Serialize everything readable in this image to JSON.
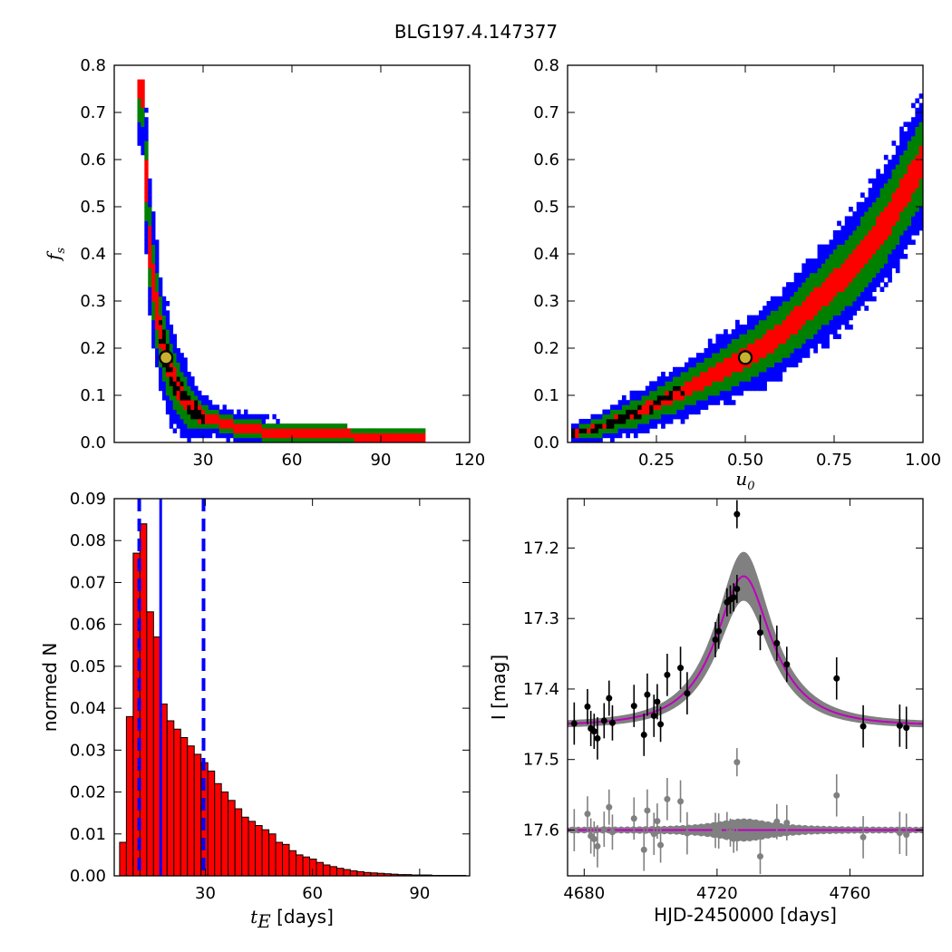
{
  "title": "BLG197.4.147377",
  "colors": {
    "outer": "#0000ff",
    "mid": "#008000",
    "inner": "#ff0000",
    "core": "#000000",
    "marker_fill": "#c8b030",
    "hist_fill": "#ff0000",
    "vline": "#0000ff",
    "band": "#808080",
    "model": "#bf00bf",
    "residual": "#808080"
  },
  "chart_data": [
    {
      "id": "fs_vs_tE",
      "type": "heatmap",
      "xlabel": "",
      "ylabel": "f_s",
      "ylabel_parts": [
        "f",
        "s"
      ],
      "xlim": [
        0,
        120
      ],
      "ylim": [
        0.0,
        0.8
      ],
      "xticks": [
        30,
        60,
        90,
        120
      ],
      "xtick_labels": [
        "30",
        "60",
        "90",
        "120"
      ],
      "yticks": [
        0.0,
        0.1,
        0.2,
        0.3,
        0.4,
        0.5,
        0.6,
        0.7,
        0.8
      ],
      "ytick_labels": [
        "0.0",
        "0.1",
        "0.2",
        "0.3",
        "0.4",
        "0.5",
        "0.6",
        "0.7",
        "0.8"
      ],
      "best_fit": {
        "x": 17.5,
        "y": 0.18
      },
      "ridge": [
        [
          9.5,
          0.77
        ],
        [
          10.5,
          0.6
        ],
        [
          11.5,
          0.45
        ],
        [
          13,
          0.35
        ],
        [
          15,
          0.25
        ],
        [
          17.5,
          0.18
        ],
        [
          21,
          0.12
        ],
        [
          25,
          0.08
        ],
        [
          30,
          0.055
        ],
        [
          40,
          0.035
        ],
        [
          50,
          0.025
        ],
        [
          60,
          0.02
        ],
        [
          80,
          0.015
        ],
        [
          100,
          0.013
        ]
      ]
    },
    {
      "id": "fs_vs_u0",
      "type": "heatmap",
      "xlabel": "u_0",
      "xlabel_parts": [
        "u",
        "0"
      ],
      "ylabel": "",
      "xlim": [
        0.0,
        1.0
      ],
      "ylim": [
        0.0,
        0.8
      ],
      "xticks": [
        0.25,
        0.5,
        0.75,
        1.0
      ],
      "xtick_labels": [
        "0.25",
        "0.50",
        "0.75",
        "1.00"
      ],
      "yticks": [
        0.0,
        0.1,
        0.2,
        0.3,
        0.4,
        0.5,
        0.6,
        0.7,
        0.8
      ],
      "ytick_labels": [
        "0.0",
        "0.1",
        "0.2",
        "0.3",
        "0.4",
        "0.5",
        "0.6",
        "0.7",
        "0.8"
      ],
      "best_fit": {
        "x": 0.5,
        "y": 0.18
      },
      "ridge": [
        [
          0.03,
          0.02
        ],
        [
          0.1,
          0.035
        ],
        [
          0.2,
          0.065
        ],
        [
          0.3,
          0.1
        ],
        [
          0.4,
          0.14
        ],
        [
          0.5,
          0.18
        ],
        [
          0.6,
          0.23
        ],
        [
          0.7,
          0.3
        ],
        [
          0.8,
          0.37
        ],
        [
          0.9,
          0.47
        ],
        [
          1.0,
          0.6
        ]
      ]
    },
    {
      "id": "tE_histogram",
      "type": "bar",
      "xlabel_parts": [
        "t",
        "E",
        " [days]"
      ],
      "xlabel": "t_E [days]",
      "ylabel": "normed N",
      "xlim": [
        4.5,
        104
      ],
      "ylim": [
        0.0,
        0.09
      ],
      "xticks": [
        30,
        60,
        90
      ],
      "xtick_labels": [
        "30",
        "60",
        "90"
      ],
      "yticks": [
        0.0,
        0.01,
        0.02,
        0.03,
        0.04,
        0.05,
        0.06,
        0.07,
        0.08,
        0.09
      ],
      "ytick_labels": [
        "0.00",
        "0.01",
        "0.02",
        "0.03",
        "0.04",
        "0.05",
        "0.06",
        "0.07",
        "0.08",
        "0.09"
      ],
      "bin_start": 6,
      "bin_width": 1.9,
      "values": [
        0.008,
        0.038,
        0.077,
        0.084,
        0.063,
        0.057,
        0.041,
        0.037,
        0.035,
        0.033,
        0.031,
        0.029,
        0.027,
        0.025,
        0.022,
        0.02,
        0.018,
        0.016,
        0.014,
        0.013,
        0.012,
        0.011,
        0.01,
        0.008,
        0.0075,
        0.006,
        0.005,
        0.0045,
        0.004,
        0.0032,
        0.0026,
        0.0022,
        0.0018,
        0.0015,
        0.0012,
        0.001,
        0.0008,
        0.0007,
        0.0006,
        0.0005,
        0.0004,
        0.0003,
        0.0003,
        0.0002,
        0.0002,
        0.0002,
        0.0001,
        0.0001,
        0.0001,
        0.0001,
        0.0001,
        0.0001
      ],
      "median": 17.5,
      "dashed_lines": [
        11.5,
        29.5
      ]
    },
    {
      "id": "light_curve",
      "type": "scatter",
      "xlabel": "HJD-2450000 [days]",
      "ylabel": "I [mag]",
      "xlim": [
        4675,
        4782
      ],
      "ylim": [
        17.665,
        17.13
      ],
      "xticks": [
        4680,
        4720,
        4760
      ],
      "xtick_labels": [
        "4680",
        "4720",
        "4760"
      ],
      "yticks": [
        17.2,
        17.3,
        17.4,
        17.5,
        17.6
      ],
      "ytick_labels": [
        "17.2",
        "17.3",
        "17.4",
        "17.5",
        "17.6"
      ],
      "model": {
        "t0": 4728,
        "baseline": 17.452,
        "peak": 17.24,
        "tE": 17.5,
        "u0": 0.5
      },
      "residual_offset": 17.6,
      "points": [
        {
          "t": 4677,
          "mag": 17.449,
          "err": 0.03
        },
        {
          "t": 4681,
          "mag": 17.425,
          "err": 0.025
        },
        {
          "t": 4682,
          "mag": 17.456,
          "err": 0.025
        },
        {
          "t": 4683,
          "mag": 17.46,
          "err": 0.025
        },
        {
          "t": 4684,
          "mag": 17.47,
          "err": 0.03
        },
        {
          "t": 4686,
          "mag": 17.445,
          "err": 0.025
        },
        {
          "t": 4687.5,
          "mag": 17.413,
          "err": 0.025
        },
        {
          "t": 4688.5,
          "mag": 17.448,
          "err": 0.025
        },
        {
          "t": 4695,
          "mag": 17.424,
          "err": 0.03
        },
        {
          "t": 4698,
          "mag": 17.465,
          "err": 0.03
        },
        {
          "t": 4699,
          "mag": 17.408,
          "err": 0.03
        },
        {
          "t": 4701,
          "mag": 17.438,
          "err": 0.03
        },
        {
          "t": 4702,
          "mag": 17.418,
          "err": 0.025
        },
        {
          "t": 4703,
          "mag": 17.45,
          "err": 0.025
        },
        {
          "t": 4705,
          "mag": 17.38,
          "err": 0.03
        },
        {
          "t": 4709,
          "mag": 17.37,
          "err": 0.03
        },
        {
          "t": 4711,
          "mag": 17.406,
          "err": 0.03
        },
        {
          "t": 4719.5,
          "mag": 17.33,
          "err": 0.025
        },
        {
          "t": 4720.5,
          "mag": 17.318,
          "err": 0.025
        },
        {
          "t": 4723,
          "mag": 17.277,
          "err": 0.02
        },
        {
          "t": 4724,
          "mag": 17.273,
          "err": 0.02
        },
        {
          "t": 4725,
          "mag": 17.27,
          "err": 0.02
        },
        {
          "t": 4726,
          "mag": 17.258,
          "err": 0.02
        },
        {
          "t": 4726,
          "mag": 17.152,
          "err": 0.02
        },
        {
          "t": 4733,
          "mag": 17.32,
          "err": 0.025
        },
        {
          "t": 4738,
          "mag": 17.335,
          "err": 0.025
        },
        {
          "t": 4741,
          "mag": 17.365,
          "err": 0.025
        },
        {
          "t": 4756,
          "mag": 17.385,
          "err": 0.03
        },
        {
          "t": 4764,
          "mag": 17.453,
          "err": 0.03
        },
        {
          "t": 4775,
          "mag": 17.452,
          "err": 0.03
        },
        {
          "t": 4777,
          "mag": 17.455,
          "err": 0.03
        }
      ]
    }
  ]
}
